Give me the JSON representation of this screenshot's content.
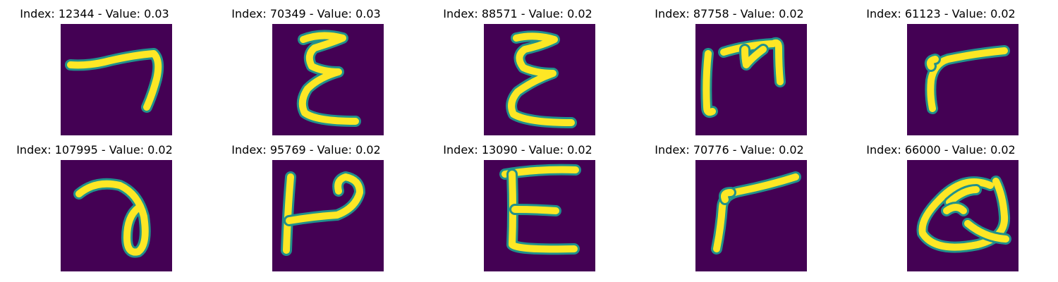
{
  "figure": {
    "panels": [
      {
        "title": "Index: 12344 - Value: 0.03",
        "glyph": "stroke-7"
      },
      {
        "title": "Index: 70349 - Value: 0.03",
        "glyph": "stroke-epsilon"
      },
      {
        "title": "Index: 88571 - Value: 0.02",
        "glyph": "stroke-epsilon"
      },
      {
        "title": "Index: 87758 - Value: 0.02",
        "glyph": "stroke-bracket-m"
      },
      {
        "title": "Index: 61123 - Value: 0.02",
        "glyph": "stroke-r"
      },
      {
        "title": "Index: 107995 - Value: 0.02",
        "glyph": "stroke-a"
      },
      {
        "title": "Index: 95769 - Value: 0.02",
        "glyph": "stroke-h"
      },
      {
        "title": "Index: 13090 - Value: 0.02",
        "glyph": "stroke-e"
      },
      {
        "title": "Index: 70776 - Value: 0.02",
        "glyph": "stroke-r"
      },
      {
        "title": "Index: 66000 - Value: 0.02",
        "glyph": "stroke-q"
      }
    ],
    "colors": {
      "background": "#440154",
      "edge": "#21918c",
      "core": "#fde725"
    }
  }
}
